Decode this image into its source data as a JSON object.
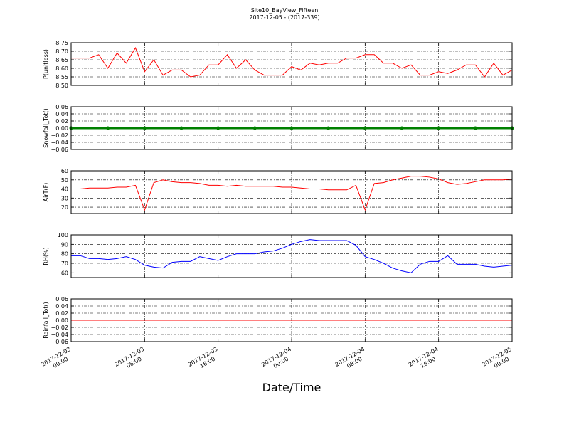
{
  "header": {
    "title": "Site10_BayView_Fifteen",
    "subtitle": "2017-12-05 - (2017-339)"
  },
  "chart_data": [
    {
      "type": "line",
      "ylabel": "P(unitless)",
      "color": "#ff0000",
      "grid": true,
      "x": [
        "2017-12-03 00:00",
        "2017-12-03 01:00",
        "2017-12-03 02:00",
        "2017-12-03 03:00",
        "2017-12-03 04:00",
        "2017-12-03 05:00",
        "2017-12-03 06:00",
        "2017-12-03 07:00",
        "2017-12-03 08:00",
        "2017-12-03 09:00",
        "2017-12-03 10:00",
        "2017-12-03 11:00",
        "2017-12-03 12:00",
        "2017-12-03 13:00",
        "2017-12-03 14:00",
        "2017-12-03 15:00",
        "2017-12-03 16:00",
        "2017-12-03 17:00",
        "2017-12-03 18:00",
        "2017-12-03 19:00",
        "2017-12-03 20:00",
        "2017-12-03 21:00",
        "2017-12-03 22:00",
        "2017-12-03 23:00",
        "2017-12-04 00:00",
        "2017-12-04 01:00",
        "2017-12-04 02:00",
        "2017-12-04 03:00",
        "2017-12-04 04:00",
        "2017-12-04 05:00",
        "2017-12-04 06:00",
        "2017-12-04 07:00",
        "2017-12-04 08:00",
        "2017-12-04 09:00",
        "2017-12-04 10:00",
        "2017-12-04 11:00",
        "2017-12-04 12:00",
        "2017-12-04 13:00",
        "2017-12-04 14:00",
        "2017-12-04 15:00",
        "2017-12-04 16:00",
        "2017-12-04 17:00",
        "2017-12-04 18:00",
        "2017-12-04 19:00",
        "2017-12-04 20:00",
        "2017-12-04 21:00",
        "2017-12-04 22:00",
        "2017-12-04 23:00",
        "2017-12-05 00:00"
      ],
      "values": [
        8.66,
        8.66,
        8.66,
        8.68,
        8.6,
        8.69,
        8.63,
        8.72,
        8.58,
        8.65,
        8.56,
        8.59,
        8.59,
        8.55,
        8.56,
        8.62,
        8.62,
        8.68,
        8.6,
        8.65,
        8.59,
        8.56,
        8.56,
        8.56,
        8.61,
        8.59,
        8.63,
        8.62,
        8.63,
        8.63,
        8.66,
        8.66,
        8.68,
        8.68,
        8.63,
        8.63,
        8.6,
        8.62,
        8.56,
        8.56,
        8.58,
        8.57,
        8.59,
        8.62,
        8.62,
        8.55,
        8.63,
        8.56,
        8.59
      ],
      "xlim": [
        "2017-12-03 00:00",
        "2017-12-05 00:00"
      ],
      "xticks": [
        "2017-12-03 00:00",
        "2017-12-03 08:00",
        "2017-12-03 16:00",
        "2017-12-04 00:00",
        "2017-12-04 08:00",
        "2017-12-04 16:00",
        "2017-12-05 00:00"
      ],
      "ylim": [
        8.5,
        8.75
      ],
      "yticks": [
        {
          "value": 8.5,
          "label": "8.50"
        },
        8.55,
        {
          "value": 8.6,
          "label": "8.60"
        },
        8.65,
        {
          "value": 8.7,
          "label": "8.70"
        },
        8.75
      ]
    },
    {
      "type": "line",
      "ylabel": "Snowfall_Tot()",
      "color": "#008000",
      "marker": true,
      "grid": true,
      "x": [
        "2017-12-03 00:00",
        "2017-12-03 04:00",
        "2017-12-03 08:00",
        "2017-12-03 12:00",
        "2017-12-03 16:00",
        "2017-12-03 20:00",
        "2017-12-04 00:00",
        "2017-12-04 04:00",
        "2017-12-04 08:00",
        "2017-12-04 12:00",
        "2017-12-04 16:00",
        "2017-12-04 20:00",
        "2017-12-05 00:00"
      ],
      "values": [
        0,
        0,
        0,
        0,
        0,
        0,
        0,
        0,
        0,
        0,
        0,
        0,
        0
      ],
      "xlim": [
        "2017-12-03 00:00",
        "2017-12-05 00:00"
      ],
      "xticks": [
        "2017-12-03 00:00",
        "2017-12-03 08:00",
        "2017-12-03 16:00",
        "2017-12-04 00:00",
        "2017-12-04 08:00",
        "2017-12-04 16:00",
        "2017-12-05 00:00"
      ],
      "ylim": [
        -0.06,
        0.06
      ],
      "yticks": [
        {
          "value": -0.06,
          "label": "−0.06"
        },
        {
          "value": -0.04,
          "label": "−0.04"
        },
        {
          "value": -0.02,
          "label": "−0.02"
        },
        {
          "value": 0,
          "label": "0.00"
        },
        0.02,
        0.04,
        0.06
      ]
    },
    {
      "type": "line",
      "ylabel": "AirT(F)",
      "color": "#ff0000",
      "grid": true,
      "x": [
        "2017-12-03 00:00",
        "2017-12-03 01:00",
        "2017-12-03 02:00",
        "2017-12-03 03:00",
        "2017-12-03 04:00",
        "2017-12-03 05:00",
        "2017-12-03 06:00",
        "2017-12-03 07:00",
        "2017-12-03 08:00",
        "2017-12-03 09:00",
        "2017-12-03 10:00",
        "2017-12-03 11:00",
        "2017-12-03 12:00",
        "2017-12-03 13:00",
        "2017-12-03 14:00",
        "2017-12-03 15:00",
        "2017-12-03 16:00",
        "2017-12-03 17:00",
        "2017-12-03 18:00",
        "2017-12-03 19:00",
        "2017-12-03 20:00",
        "2017-12-03 21:00",
        "2017-12-03 22:00",
        "2017-12-03 23:00",
        "2017-12-04 00:00",
        "2017-12-04 01:00",
        "2017-12-04 02:00",
        "2017-12-04 03:00",
        "2017-12-04 04:00",
        "2017-12-04 05:00",
        "2017-12-04 06:00",
        "2017-12-04 07:00",
        "2017-12-04 08:00",
        "2017-12-04 09:00",
        "2017-12-04 10:00",
        "2017-12-04 11:00",
        "2017-12-04 12:00",
        "2017-12-04 13:00",
        "2017-12-04 14:00",
        "2017-12-04 15:00",
        "2017-12-04 16:00",
        "2017-12-04 17:00",
        "2017-12-04 18:00",
        "2017-12-04 19:00",
        "2017-12-04 20:00",
        "2017-12-04 21:00",
        "2017-12-04 22:00",
        "2017-12-04 23:00",
        "2017-12-05 00:00"
      ],
      "values": [
        40,
        40,
        41,
        41,
        41,
        42,
        42,
        44,
        17,
        47,
        50,
        48,
        47,
        47,
        46,
        44,
        44,
        43,
        44,
        43,
        43,
        43,
        43,
        42,
        42,
        41,
        40,
        40,
        39,
        39,
        39,
        44,
        17,
        46,
        47,
        50,
        52,
        54,
        54,
        53,
        51,
        47,
        45,
        46,
        48,
        50,
        50,
        50,
        51
      ],
      "xlim": [
        "2017-12-03 00:00",
        "2017-12-05 00:00"
      ],
      "xticks": [
        "2017-12-03 00:00",
        "2017-12-03 08:00",
        "2017-12-03 16:00",
        "2017-12-04 00:00",
        "2017-12-04 08:00",
        "2017-12-04 16:00",
        "2017-12-05 00:00"
      ],
      "ylim": [
        13,
        60
      ],
      "yticks": [
        20,
        30,
        40,
        50,
        60
      ]
    },
    {
      "type": "line",
      "ylabel": "RH(%)",
      "color": "#0000ff",
      "grid": true,
      "x": [
        "2017-12-03 00:00",
        "2017-12-03 01:00",
        "2017-12-03 02:00",
        "2017-12-03 03:00",
        "2017-12-03 04:00",
        "2017-12-03 05:00",
        "2017-12-03 06:00",
        "2017-12-03 07:00",
        "2017-12-03 08:00",
        "2017-12-03 09:00",
        "2017-12-03 10:00",
        "2017-12-03 11:00",
        "2017-12-03 12:00",
        "2017-12-03 13:00",
        "2017-12-03 14:00",
        "2017-12-03 15:00",
        "2017-12-03 16:00",
        "2017-12-03 17:00",
        "2017-12-03 18:00",
        "2017-12-03 19:00",
        "2017-12-03 20:00",
        "2017-12-03 21:00",
        "2017-12-03 22:00",
        "2017-12-03 23:00",
        "2017-12-04 00:00",
        "2017-12-04 01:00",
        "2017-12-04 02:00",
        "2017-12-04 03:00",
        "2017-12-04 04:00",
        "2017-12-04 05:00",
        "2017-12-04 06:00",
        "2017-12-04 07:00",
        "2017-12-04 08:00",
        "2017-12-04 09:00",
        "2017-12-04 10:00",
        "2017-12-04 11:00",
        "2017-12-04 12:00",
        "2017-12-04 13:00",
        "2017-12-04 14:00",
        "2017-12-04 15:00",
        "2017-12-04 16:00",
        "2017-12-04 17:00",
        "2017-12-04 18:00",
        "2017-12-04 19:00",
        "2017-12-04 20:00",
        "2017-12-04 21:00",
        "2017-12-04 22:00",
        "2017-12-04 23:00",
        "2017-12-05 00:00"
      ],
      "values": [
        78,
        78,
        75,
        75,
        74,
        75,
        77,
        74,
        68,
        66,
        65,
        71,
        72,
        72,
        77,
        75,
        73,
        77,
        80,
        80,
        80,
        82,
        83,
        86,
        90,
        93,
        95,
        94,
        94,
        94,
        94,
        89,
        77,
        74,
        70,
        65,
        62,
        60,
        69,
        72,
        72,
        78,
        69,
        69,
        69,
        67,
        66,
        67,
        68
      ],
      "xlim": [
        "2017-12-03 00:00",
        "2017-12-05 00:00"
      ],
      "xticks": [
        "2017-12-03 00:00",
        "2017-12-03 08:00",
        "2017-12-03 16:00",
        "2017-12-04 00:00",
        "2017-12-04 08:00",
        "2017-12-04 16:00",
        "2017-12-05 00:00"
      ],
      "ylim": [
        55,
        100
      ],
      "yticks": [
        60,
        70,
        80,
        90,
        100
      ]
    },
    {
      "type": "line",
      "ylabel": "Rainfall_Tot()",
      "color": "#ff0000",
      "grid": true,
      "xlabel": "Date/Time",
      "x": [
        "2017-12-03 00:00",
        "2017-12-03 04:00",
        "2017-12-03 08:00",
        "2017-12-03 12:00",
        "2017-12-03 16:00",
        "2017-12-03 20:00",
        "2017-12-04 00:00",
        "2017-12-04 04:00",
        "2017-12-04 08:00",
        "2017-12-04 12:00",
        "2017-12-04 16:00",
        "2017-12-04 20:00",
        "2017-12-05 00:00"
      ],
      "values": [
        0,
        0,
        0,
        0,
        0,
        0,
        0,
        0,
        0,
        0,
        0,
        0,
        0
      ],
      "xlim": [
        "2017-12-03 00:00",
        "2017-12-05 00:00"
      ],
      "xticks": [
        "2017-12-03 00:00",
        "2017-12-03 08:00",
        "2017-12-03 16:00",
        "2017-12-04 00:00",
        "2017-12-04 08:00",
        "2017-12-04 16:00",
        "2017-12-05 00:00"
      ],
      "ylim": [
        -0.06,
        0.06
      ],
      "yticks": [
        {
          "value": -0.06,
          "label": "−0.06"
        },
        {
          "value": -0.04,
          "label": "−0.04"
        },
        {
          "value": -0.02,
          "label": "−0.02"
        },
        {
          "value": 0,
          "label": "0.00"
        },
        0.02,
        0.04,
        0.06
      ]
    }
  ]
}
